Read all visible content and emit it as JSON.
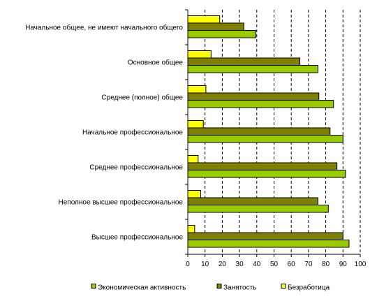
{
  "chart_data": {
    "type": "bar",
    "orientation": "horizontal",
    "title": "",
    "xlabel": "",
    "ylabel": "",
    "xlim": [
      0,
      100
    ],
    "x_ticks": [
      0,
      10,
      20,
      30,
      40,
      50,
      60,
      70,
      80,
      90,
      100
    ],
    "grid": "vertical dashed",
    "legend_position": "bottom",
    "categories": [
      "Начальное общее, не имеют начального общего",
      "Основное общее",
      "Среднее (полное) общее",
      "Начальное профессиональное",
      "Среднее профессиональное",
      "Неполное высшее профессиональное",
      "Высшее профессиональное"
    ],
    "series": [
      {
        "name": "Безработица",
        "color": "#ffff00",
        "values": [
          18.5,
          13.5,
          10.5,
          9,
          6,
          7.5,
          4
        ]
      },
      {
        "name": "Занятость",
        "color": "#808000",
        "values": [
          32.5,
          65,
          76,
          82.5,
          86.5,
          75.5,
          90
        ]
      },
      {
        "name": "Экономическая активность",
        "color": "#99cc00",
        "values": [
          39.5,
          75.5,
          84.5,
          90,
          91.5,
          81.5,
          93.5
        ]
      }
    ],
    "legend_order": [
      "Экономическая активность",
      "Занятость",
      "Безработица"
    ]
  }
}
